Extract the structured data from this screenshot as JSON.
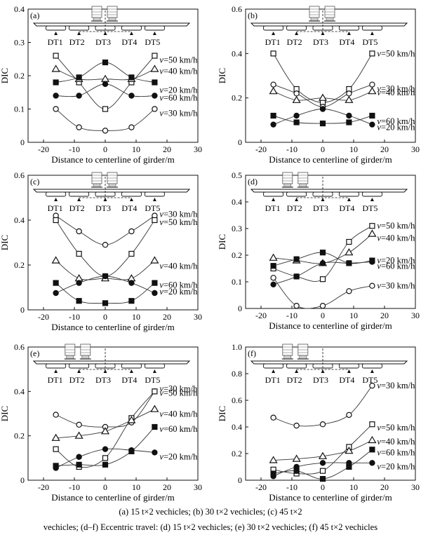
{
  "caption": {
    "line1": "(a) 15 t×2 vechicles; (b) 30 t×2 vechicles; (c) 45 t×2",
    "line2": "vechicles; (d–f) Eccentric travel: (d) 15 t×2 vechicles; (e) 30 t×2 vechicles; (f) 45 t×2 vechicles"
  },
  "girder_labels": [
    "DT1",
    "DT2",
    "DT3",
    "DT4",
    "DT5"
  ],
  "chart_data": [
    {
      "panel": "(a)",
      "type": "line",
      "xlabel": "Distance to centerline of girder/m",
      "ylabel": "DIC",
      "xlim": [
        -25,
        30
      ],
      "xticks": [
        -20,
        -10,
        0,
        10,
        20,
        30
      ],
      "ylim": [
        0,
        0.4
      ],
      "yticks": [
        0,
        0.1,
        0.2,
        0.3,
        0.4
      ],
      "eccentric": false,
      "x": [
        -16,
        -8.5,
        0,
        8.5,
        16
      ],
      "series": [
        {
          "name": "v=50 km/h",
          "marker": "square-open",
          "values": [
            0.26,
            0.18,
            0.1,
            0.18,
            0.26
          ]
        },
        {
          "name": "v=40 km/h",
          "marker": "triangle-open",
          "values": [
            0.22,
            0.19,
            0.19,
            0.19,
            0.22
          ]
        },
        {
          "name": "v=20 km/h",
          "marker": "square-filled",
          "values": [
            0.18,
            0.195,
            0.24,
            0.195,
            0.18
          ]
        },
        {
          "name": "v=60 km/h",
          "marker": "circle-filled",
          "values": [
            0.14,
            0.14,
            0.175,
            0.14,
            0.14
          ]
        },
        {
          "name": "v=30 km/h",
          "marker": "circle-open",
          "values": [
            0.1,
            0.045,
            0.035,
            0.045,
            0.1
          ]
        }
      ]
    },
    {
      "panel": "(b)",
      "type": "line",
      "xlabel": "Distance to centerline of girder/m",
      "ylabel": "DIC",
      "xlim": [
        -25,
        30
      ],
      "xticks": [
        -20,
        -10,
        0,
        10,
        20,
        30
      ],
      "ylim": [
        0,
        0.6
      ],
      "yticks": [
        0,
        0.2,
        0.4,
        0.6
      ],
      "eccentric": false,
      "x": [
        -16,
        -8.5,
        0,
        8.5,
        16
      ],
      "series": [
        {
          "name": "v=50 km/h",
          "marker": "square-open",
          "values": [
            0.4,
            0.24,
            0.18,
            0.24,
            0.4
          ]
        },
        {
          "name": "v=30 km/h",
          "marker": "circle-open",
          "values": [
            0.26,
            0.22,
            0.16,
            0.22,
            0.26
          ]
        },
        {
          "name": "v=40 km/h",
          "marker": "triangle-open",
          "values": [
            0.23,
            0.19,
            0.2,
            0.19,
            0.23
          ]
        },
        {
          "name": "v=60 km/h",
          "marker": "square-filled",
          "values": [
            0.12,
            0.09,
            0.085,
            0.09,
            0.12
          ]
        },
        {
          "name": "v=20 km/h",
          "marker": "circle-filled",
          "values": [
            0.08,
            0.12,
            0.15,
            0.12,
            0.08
          ]
        }
      ]
    },
    {
      "panel": "(c)",
      "type": "line",
      "xlabel": "Distance to centerline of girder/m",
      "ylabel": "DIC",
      "xlim": [
        -25,
        30
      ],
      "xticks": [
        -20,
        -10,
        0,
        10,
        20,
        30
      ],
      "ylim": [
        0,
        0.6
      ],
      "yticks": [
        0,
        0.2,
        0.4,
        0.6
      ],
      "eccentric": false,
      "x": [
        -16,
        -8.5,
        0,
        8.5,
        16
      ],
      "series": [
        {
          "name": "v=30 km/h",
          "marker": "circle-open",
          "values": [
            0.42,
            0.35,
            0.29,
            0.35,
            0.42
          ]
        },
        {
          "name": "v=50 km/h",
          "marker": "square-open",
          "values": [
            0.4,
            0.25,
            0.15,
            0.25,
            0.4
          ]
        },
        {
          "name": "v=40 km/h",
          "marker": "triangle-open",
          "values": [
            0.22,
            0.14,
            0.14,
            0.14,
            0.22
          ]
        },
        {
          "name": "v=60 km/h",
          "marker": "square-filled",
          "values": [
            0.12,
            0.04,
            0.03,
            0.04,
            0.12
          ]
        },
        {
          "name": "v=20 km/h",
          "marker": "circle-filled",
          "values": [
            0.075,
            0.12,
            0.15,
            0.12,
            0.075
          ]
        }
      ]
    },
    {
      "panel": "(d)",
      "type": "line",
      "xlabel": "Distance to centerline of girder/m",
      "ylabel": "DIC",
      "xlim": [
        -25,
        30
      ],
      "xticks": [
        -20,
        -10,
        0,
        10,
        20,
        30
      ],
      "ylim": [
        0,
        0.5
      ],
      "yticks": [
        0,
        0.1,
        0.2,
        0.3,
        0.4,
        0.5
      ],
      "eccentric": true,
      "x": [
        -16,
        -8.5,
        0,
        8.5,
        16
      ],
      "series": [
        {
          "name": "v=50 km/h",
          "marker": "square-open",
          "values": [
            0.15,
            0.12,
            0.11,
            0.25,
            0.31
          ]
        },
        {
          "name": "v=40 km/h",
          "marker": "triangle-open",
          "values": [
            0.19,
            0.18,
            0.17,
            0.21,
            0.28
          ]
        },
        {
          "name": "v=20 km/h",
          "marker": "square-filled",
          "values": [
            0.16,
            0.185,
            0.21,
            0.17,
            0.18
          ]
        },
        {
          "name": "v=60 km/h",
          "marker": "circle-filled",
          "values": [
            0.09,
            0.12,
            0.17,
            0.17,
            0.175
          ]
        },
        {
          "name": "v=30 km/h",
          "marker": "circle-open",
          "values": [
            0.115,
            0.01,
            0.01,
            0.065,
            0.085
          ]
        }
      ]
    },
    {
      "panel": "(e)",
      "type": "line",
      "xlabel": "Distance to centerline of girder/m",
      "ylabel": "DIC",
      "xlim": [
        -25,
        30
      ],
      "xticks": [
        -20,
        -10,
        0,
        10,
        20,
        30
      ],
      "ylim": [
        0,
        0.6
      ],
      "yticks": [
        0,
        0.2,
        0.4,
        0.6
      ],
      "eccentric": true,
      "x": [
        -16,
        -8.5,
        0,
        8.5,
        16
      ],
      "series": [
        {
          "name": "v=30 km/h",
          "marker": "circle-open",
          "values": [
            0.295,
            0.25,
            0.24,
            0.26,
            0.4
          ]
        },
        {
          "name": "v=50 km/h",
          "marker": "square-open",
          "values": [
            0.14,
            0.06,
            0.1,
            0.28,
            0.4
          ]
        },
        {
          "name": "v=40 km/h",
          "marker": "triangle-open",
          "values": [
            0.19,
            0.2,
            0.22,
            0.27,
            0.32
          ]
        },
        {
          "name": "v=60 km/h",
          "marker": "square-filled",
          "values": [
            0.065,
            0.07,
            0.07,
            0.13,
            0.24
          ]
        },
        {
          "name": "v=20 km/h",
          "marker": "circle-filled",
          "values": [
            0.055,
            0.105,
            0.14,
            0.135,
            0.125
          ]
        }
      ]
    },
    {
      "panel": "(f)",
      "type": "line",
      "xlabel": "Distance to centerline of girder/m",
      "ylabel": "DIC",
      "xlim": [
        -25,
        30
      ],
      "xticks": [
        -20,
        -10,
        0,
        10,
        20,
        30
      ],
      "ylim": [
        0,
        1.0
      ],
      "yticks": [
        0,
        0.2,
        0.4,
        0.6,
        0.8,
        1.0
      ],
      "eccentric": true,
      "x": [
        -16,
        -8.5,
        0,
        8.5,
        16
      ],
      "series": [
        {
          "name": "v=30 km/h",
          "marker": "circle-open",
          "values": [
            0.47,
            0.41,
            0.42,
            0.49,
            0.71
          ]
        },
        {
          "name": "v=50 km/h",
          "marker": "square-open",
          "values": [
            0.08,
            0.05,
            0.07,
            0.25,
            0.42
          ]
        },
        {
          "name": "v=40 km/h",
          "marker": "triangle-open",
          "values": [
            0.15,
            0.16,
            0.18,
            0.22,
            0.3
          ]
        },
        {
          "name": "v=60 km/h",
          "marker": "square-filled",
          "values": [
            0.05,
            0.07,
            0.01,
            0.1,
            0.23
          ]
        },
        {
          "name": "v=20 km/h",
          "marker": "circle-filled",
          "values": [
            0.03,
            0.1,
            0.13,
            0.13,
            0.13
          ]
        }
      ]
    }
  ]
}
